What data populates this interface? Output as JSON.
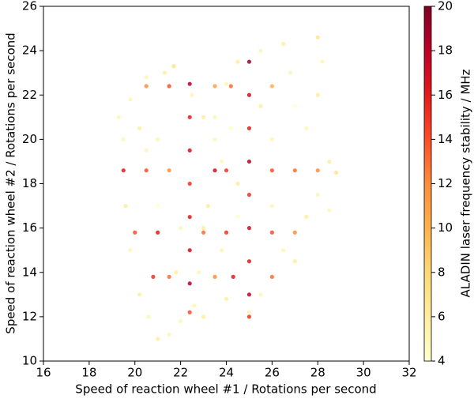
{
  "chart_data": {
    "type": "scatter",
    "xlabel": "Speed of reaction wheel #1 / Rotations per second",
    "ylabel": "Speed of reaction wheel #2 / Rotations per second",
    "colorbar_label": "ALADIN laser frequency stability / MHz",
    "cmap": "YlOrRd",
    "x": [
      19.3,
      19.5,
      19.6,
      19.8,
      20.2,
      20.6,
      21,
      21.5,
      21.7,
      21.3,
      20.5,
      19.8,
      22.5,
      23,
      23.5,
      23.8,
      23.2,
      22.8,
      22,
      22.6,
      23,
      23.5,
      24,
      24.5,
      25.5,
      26.5,
      28,
      28.2,
      28,
      27.5,
      28.5,
      28.8,
      28,
      27.5,
      26.5,
      25.5,
      25,
      24,
      23.8,
      24.5,
      26,
      26,
      27,
      25.5,
      26.8,
      24.2,
      21,
      21,
      20.5,
      22,
      21.8,
      20.2,
      27,
      28.5,
      24.5,
      23,
      22.4,
      22.4,
      22.4,
      22.4,
      22.4,
      22.4,
      22.4,
      22.4,
      25,
      25,
      25,
      25,
      25,
      25,
      25,
      25,
      25,
      19.5,
      20.5,
      21.5,
      23.5,
      24,
      26,
      27,
      28,
      20,
      21,
      23,
      24,
      26,
      27,
      20.5,
      21.5,
      23.5,
      24.2,
      26,
      20.8,
      21.5,
      23.5,
      24.3,
      26
    ],
    "values": [
      21,
      20,
      17,
      15,
      13,
      12,
      11,
      11.2,
      23.3,
      23,
      22.8,
      21.8,
      22,
      21,
      20,
      19,
      17,
      14,
      11.8,
      12.5,
      16,
      21,
      22.5,
      23.5,
      24,
      24.3,
      24.6,
      23.5,
      22,
      20.5,
      19,
      18.5,
      17.5,
      16.5,
      15,
      13,
      12.2,
      12.8,
      15,
      16.5,
      17,
      20,
      21.5,
      21.5,
      23,
      20.5,
      20,
      17,
      19.5,
      16,
      14,
      20.5,
      14.5,
      16.8,
      18,
      12,
      22.5,
      21,
      19.5,
      18,
      16.5,
      15,
      13.5,
      12.2,
      23.5,
      22,
      20.5,
      19,
      17.5,
      16,
      14.5,
      13,
      12,
      18.6,
      18.6,
      18.6,
      18.6,
      18.6,
      18.6,
      18.6,
      18.6,
      15.8,
      15.8,
      15.8,
      15.8,
      15.8,
      15.8,
      22.4,
      22.4,
      22.4,
      22.4,
      22.4,
      13.8,
      13.8,
      13.8,
      13.8,
      13.8
    ],
    "color_values": [
      5,
      5,
      6,
      5,
      6,
      5,
      6,
      5,
      7,
      6,
      5,
      5,
      5,
      6,
      5,
      5,
      6,
      5,
      5,
      5,
      6,
      5,
      5,
      6,
      5,
      6,
      7,
      5,
      6,
      5,
      6,
      7,
      5,
      6,
      5,
      5,
      5,
      6,
      5,
      4,
      5,
      5,
      4,
      6,
      5,
      4,
      5,
      4,
      5,
      5,
      6,
      6,
      6,
      5,
      6,
      6,
      18,
      16,
      17,
      15,
      16,
      17,
      18,
      14,
      19,
      17,
      16,
      18,
      15,
      17,
      16,
      18,
      15,
      16,
      14,
      12,
      17,
      15,
      14,
      13,
      12,
      14,
      16,
      13,
      15,
      14,
      12,
      12,
      14,
      11,
      13,
      10,
      15,
      13,
      12,
      16,
      13
    ],
    "xlim": [
      16,
      32
    ],
    "xticks": [
      16,
      18,
      20,
      22,
      24,
      26,
      28,
      30,
      32
    ],
    "ylim": [
      10,
      26
    ],
    "yticks": [
      10,
      12,
      14,
      16,
      18,
      20,
      22,
      24,
      26
    ],
    "clim": [
      4,
      20
    ],
    "cticks": [
      4,
      6,
      8,
      10,
      12,
      14,
      16,
      18,
      20
    ]
  }
}
